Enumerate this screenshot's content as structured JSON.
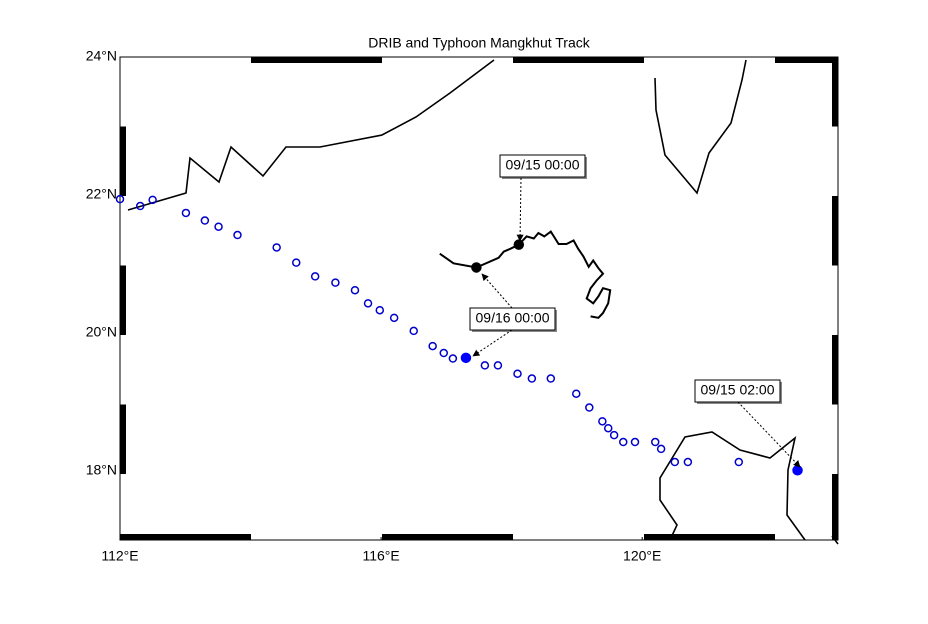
{
  "chart_data": {
    "type": "scatter",
    "title": "DRIB and Typhoon Mangkhut Track",
    "xlim": [
      112,
      123
    ],
    "ylim": [
      17,
      24
    ],
    "xticks": [
      {
        "value": 112,
        "label": "112°E"
      },
      {
        "value": 116,
        "label": "116°E"
      },
      {
        "value": 120,
        "label": "120°E"
      }
    ],
    "yticks": [
      {
        "value": 18,
        "label": "18°N"
      },
      {
        "value": 20,
        "label": "20°N"
      },
      {
        "value": 22,
        "label": "22°N"
      },
      {
        "value": 24,
        "label": "24°N"
      }
    ],
    "grid": false,
    "series": [
      {
        "color": "#0000cc",
        "marker": "open",
        "x": [
          112.0,
          112.31,
          112.5,
          113.01,
          113.3,
          113.51,
          113.8,
          114.4,
          114.7,
          114.99,
          115.3,
          115.6,
          115.8,
          115.98,
          116.2,
          116.5,
          116.79,
          116.96,
          117.1,
          117.59,
          117.79,
          118.09,
          118.31,
          118.6,
          118.99,
          119.19,
          119.39,
          119.48,
          119.57,
          119.71,
          119.89,
          120.2,
          120.29,
          120.5,
          120.7,
          121.48
        ],
        "values": [
          21.94,
          21.84,
          21.93,
          21.74,
          21.63,
          21.54,
          21.42,
          21.24,
          21.02,
          20.82,
          20.73,
          20.62,
          20.43,
          20.33,
          20.22,
          20.03,
          19.81,
          19.71,
          19.63,
          19.53,
          19.53,
          19.41,
          19.34,
          19.34,
          19.12,
          18.92,
          18.72,
          18.62,
          18.52,
          18.42,
          18.42,
          18.42,
          18.32,
          18.13,
          18.13,
          18.13
        ]
      },
      {
        "color": "#0000ff",
        "marker": "filled",
        "x": [
          117.3,
          122.38
        ],
        "values": [
          19.64,
          18.01
        ]
      },
      {
        "color": "#000000",
        "marker": "line",
        "x": [
          116.9,
          117.11,
          117.46,
          117.8,
          117.88,
          117.98,
          118.11,
          118.23,
          118.34,
          118.41,
          118.5,
          118.6,
          118.72,
          118.84,
          118.95,
          119.02,
          119.1,
          119.18,
          119.25,
          119.33,
          119.4,
          119.3,
          119.21,
          119.15,
          119.25,
          119.33,
          119.4,
          119.51,
          119.48,
          119.4,
          119.33,
          119.21
        ],
        "values": [
          21.15,
          21.01,
          20.95,
          21.09,
          21.18,
          21.22,
          21.28,
          21.4,
          21.37,
          21.45,
          21.4,
          21.47,
          21.29,
          21.29,
          21.34,
          21.22,
          21.11,
          20.96,
          21.05,
          20.94,
          20.86,
          20.76,
          20.65,
          20.5,
          20.43,
          20.53,
          20.65,
          20.62,
          20.43,
          20.29,
          20.22,
          20.24
        ]
      },
      {
        "color": "#000000",
        "marker": "filled",
        "x": [
          117.46,
          118.11
        ],
        "values": [
          20.95,
          21.28
        ]
      }
    ],
    "annotations": [
      "09/15 00:00",
      "09/16 00:00",
      "09/15 02:00"
    ]
  }
}
